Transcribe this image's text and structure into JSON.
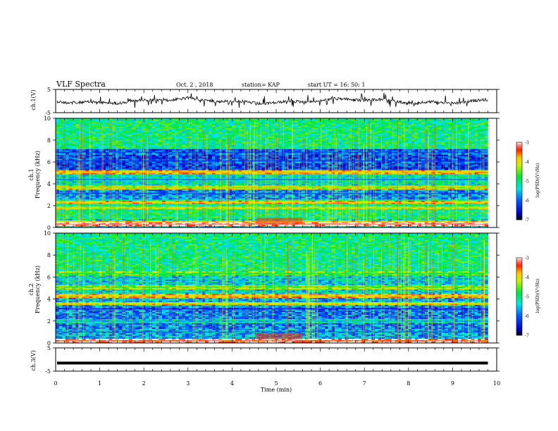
{
  "header": {
    "title": "VLF Spectra",
    "date": "Oct. 2 , 2018",
    "station": "station= KAP",
    "start_ut": "start  UT =   16: 50: 1"
  },
  "chart_data": [
    {
      "type": "line",
      "id": "ch1-waveform",
      "ylabel": "ch.1(V)",
      "ylim": [
        -5,
        5
      ],
      "yticks": [
        "5",
        "-5"
      ],
      "color": "#000000"
    },
    {
      "type": "heatmap",
      "id": "ch1-spectrogram",
      "ylabel": "ch.1\nFrequency (kHz)",
      "ylabel_lines": [
        "ch.1",
        "Frequency  (kHz)"
      ],
      "ylim": [
        0,
        10
      ],
      "yticks": [
        "0",
        "2",
        "4",
        "6",
        "8",
        "10"
      ],
      "colorbar": {
        "label": "log(PSD)(V²/Hz)",
        "range": [
          -7,
          -3
        ],
        "ticks": [
          "-3",
          "-4",
          "-5",
          "-6",
          "-7"
        ],
        "colors": [
          "#ffffff",
          "#ff0000",
          "#ffff00",
          "#00ff00",
          "#00ffff",
          "#0000ff",
          "#000000"
        ]
      },
      "bands_khz": [
        {
          "f": 0.3,
          "level": -3.2
        },
        {
          "f": 0.5,
          "level": -4.0
        },
        {
          "f": 1.8,
          "level": -4.3
        },
        {
          "f": 2.3,
          "level": -4.0
        },
        {
          "f": 3.1,
          "level": -6.3
        },
        {
          "f": 3.7,
          "level": -4.4
        },
        {
          "f": 4.4,
          "level": -6.0
        },
        {
          "f": 5.1,
          "level": -4.0
        },
        {
          "f": 6.1,
          "level": -6.3
        },
        {
          "f": 6.9,
          "level": -6.2
        }
      ]
    },
    {
      "type": "heatmap",
      "id": "ch2-spectrogram",
      "ylabel_lines": [
        "ch.2",
        "Frequency  (kHz)"
      ],
      "ylim": [
        0,
        10
      ],
      "yticks": [
        "0",
        "2",
        "4",
        "6",
        "8",
        "10"
      ],
      "colorbar": {
        "label": "log(PSD)(V²/Hz)",
        "range": [
          -7,
          -3
        ],
        "ticks": [
          "-3",
          "-4",
          "-5",
          "-6",
          "-7"
        ]
      },
      "bands_khz": [
        {
          "f": 0.2,
          "level": -3.3
        },
        {
          "f": 1.0,
          "level": -6.0
        },
        {
          "f": 2.0,
          "level": -5.6
        },
        {
          "f": 3.1,
          "level": -6.6
        },
        {
          "f": 3.6,
          "level": -4.2
        },
        {
          "f": 4.3,
          "level": -4.0
        },
        {
          "f": 5.1,
          "level": -4.6
        },
        {
          "f": 6.3,
          "level": -4.8
        }
      ]
    },
    {
      "type": "line",
      "id": "ch3-waveform",
      "ylabel": "ch.3(V)",
      "ylim": [
        -5,
        5
      ],
      "yticks": [
        "5",
        "-5"
      ],
      "value": -1.5,
      "color": "#000000"
    }
  ],
  "xaxis": {
    "label": "Time  (min)",
    "range": [
      0,
      10
    ],
    "ticks": [
      "0",
      "1",
      "2",
      "3",
      "4",
      "5",
      "6",
      "7",
      "8",
      "9",
      "10"
    ],
    "data_end": 9.8
  }
}
